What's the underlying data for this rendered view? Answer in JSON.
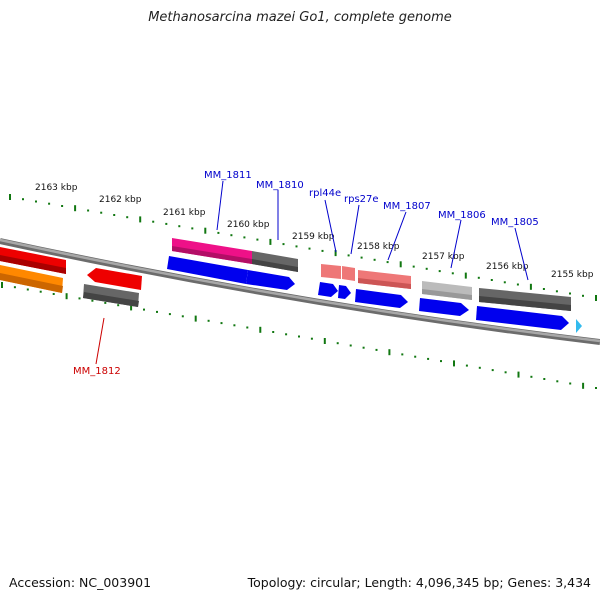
{
  "title": "Methanosarcina mazei Go1, complete genome",
  "footer": {
    "accession": "Accession: NC_003901",
    "summary": "Topology: circular; Length: 4,096,345 bp; Genes: 3,434"
  },
  "ruler": {
    "unit_labels": [
      "2163 kbp",
      "2162 kbp",
      "2161 kbp",
      "2160 kbp",
      "2159 kbp",
      "2158 kbp",
      "2157 kbp",
      "2156 kbp",
      "2155 kbp"
    ]
  },
  "gene_labels": {
    "MM_1811": "MM_1811",
    "MM_1810": "MM_1810",
    "rpl44e": "rpl44e",
    "rps27e": "rps27e",
    "MM_1807": "MM_1807",
    "MM_1806": "MM_1806",
    "MM_1805": "MM_1805",
    "MM_1812": "MM_1812"
  },
  "colors": {
    "forward_label": "#0000cc",
    "reverse_label": "#cc0000",
    "cds_blue": "#0000ee",
    "gene_gray": "#555555",
    "gene_pink": "#ee1188",
    "gene_salmon": "#ee7777",
    "gene_red": "#ee0000",
    "gene_orange": "#ff8800",
    "tick_green": "#117711",
    "backbone": "#888888",
    "pointer": "#33bbee"
  }
}
